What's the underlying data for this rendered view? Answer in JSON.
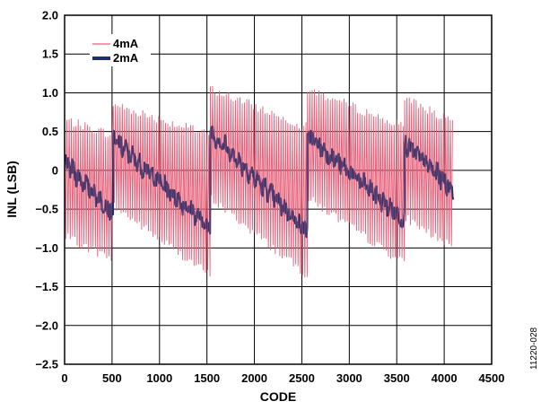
{
  "chart_data": {
    "type": "line",
    "title": "",
    "xlabel": "CODE",
    "ylabel": "INL (LSB)",
    "xlim": [
      0,
      4500
    ],
    "ylim": [
      -2.5,
      2.0
    ],
    "xticks": [
      0,
      500,
      1000,
      1500,
      2000,
      2500,
      3000,
      3500,
      4000,
      4500
    ],
    "yticks": [
      2.0,
      1.5,
      1.0,
      0.5,
      0,
      -0.5,
      -1.0,
      -1.5,
      -2.0,
      -2.5
    ],
    "xtick_labels": [
      "0",
      "500",
      "1000",
      "1500",
      "2000",
      "2500",
      "3000",
      "3500",
      "4000",
      "4500"
    ],
    "ytick_labels": [
      "2.0",
      "1.5",
      "1.0",
      "0.5",
      "0",
      "−0.5",
      "−1.0",
      "−1.5",
      "−2.0",
      "−2.5"
    ],
    "grid": true,
    "legend_position": "top-left",
    "colors": {
      "4mA": "#e8607a",
      "2mA": "#1f2f6b"
    },
    "figure_id": "11220-028",
    "series": [
      {
        "name": "4mA",
        "segments": [
          {
            "x_start": 0,
            "x_end": 512,
            "center_start": 0.0,
            "center_end": -0.25,
            "upper_start": 0.65,
            "upper_end": 0.45,
            "lower_start": -0.85,
            "lower_end": -1.15
          },
          {
            "x_start": 512,
            "x_end": 1536,
            "center_start": 0.25,
            "center_end": -0.65,
            "upper_start": 0.85,
            "upper_end": 0.45,
            "lower_start": -0.45,
            "lower_end": -1.35
          },
          {
            "x_start": 1536,
            "x_end": 2560,
            "center_start": 0.45,
            "center_end": -0.45,
            "upper_start": 1.05,
            "upper_end": 0.55,
            "lower_start": -0.35,
            "lower_end": -1.35
          },
          {
            "x_start": 2560,
            "x_end": 3584,
            "center_start": 0.4,
            "center_end": -0.5,
            "upper_start": 1.05,
            "upper_end": 0.55,
            "lower_start": -0.35,
            "lower_end": -1.2
          },
          {
            "x_start": 3584,
            "x_end": 4096,
            "center_start": 0.2,
            "center_end": -0.3,
            "upper_start": 0.95,
            "upper_end": 0.6,
            "lower_start": -0.6,
            "lower_end": -1.0
          }
        ]
      },
      {
        "name": "2mA",
        "segments": [
          {
            "x_start": 0,
            "x_end": 512,
            "center_start": 0.1,
            "center_end": -0.55
          },
          {
            "x_start": 512,
            "x_end": 1536,
            "center_start": 0.4,
            "center_end": -0.75
          },
          {
            "x_start": 1536,
            "x_end": 2560,
            "center_start": 0.5,
            "center_end": -0.8
          },
          {
            "x_start": 2560,
            "x_end": 3584,
            "center_start": 0.45,
            "center_end": -0.65
          },
          {
            "x_start": 3584,
            "x_end": 4096,
            "center_start": 0.35,
            "center_end": -0.25
          }
        ]
      }
    ]
  }
}
